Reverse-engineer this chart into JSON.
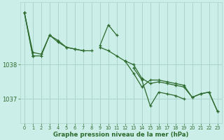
{
  "bg_color": "#cceee8",
  "grid_color": "#aad4cc",
  "line_color": "#2d6a2d",
  "xlabel": "Graphe pression niveau de la mer (hPa)",
  "xlabel_color": "#2d6a2d",
  "tick_color": "#2d6a2d",
  "ylim": [
    1036.3,
    1039.8
  ],
  "yticks": [
    1037.0,
    1038.0
  ],
  "xlim": [
    -0.5,
    23.5
  ],
  "xticks": [
    0,
    1,
    2,
    3,
    4,
    5,
    6,
    7,
    8,
    9,
    10,
    11,
    12,
    13,
    14,
    15,
    16,
    17,
    18,
    19,
    20,
    21,
    22,
    23
  ],
  "series1": [
    1039.5,
    1038.35,
    1038.3,
    1038.85,
    1038.7,
    1038.5,
    1038.45,
    1038.4,
    null,
    1038.55,
    1039.15,
    1038.85,
    null,
    null,
    null,
    null,
    null,
    null,
    null,
    null,
    null,
    null,
    null,
    null
  ],
  "series2": [
    null,
    1038.25,
    1038.25,
    1038.85,
    1038.65,
    1038.5,
    1038.45,
    1038.4,
    1038.4,
    null,
    null,
    null,
    null,
    null,
    null,
    null,
    null,
    null,
    null,
    null,
    null,
    null,
    null,
    null
  ],
  "series3": [
    1039.5,
    1038.25,
    null,
    null,
    null,
    null,
    null,
    null,
    null,
    null,
    null,
    null,
    1038.1,
    1038.0,
    1037.6,
    1037.45,
    1037.5,
    1037.45,
    1037.4,
    1037.35,
    1037.05,
    1037.15,
    1037.2,
    1036.65
  ],
  "series4": [
    1039.5,
    1038.25,
    null,
    null,
    null,
    null,
    null,
    null,
    null,
    null,
    null,
    null,
    null,
    1037.9,
    1037.55,
    1036.8,
    1037.2,
    1037.15,
    1037.1,
    1037.0,
    null,
    null,
    null,
    null
  ],
  "series5": [
    null,
    null,
    null,
    null,
    null,
    null,
    null,
    null,
    null,
    1038.5,
    1038.4,
    1038.25,
    1038.1,
    1037.75,
    1037.35,
    1037.55,
    1037.55,
    1037.5,
    1037.45,
    1037.4,
    1037.05,
    1037.15,
    1037.2,
    1036.65
  ]
}
